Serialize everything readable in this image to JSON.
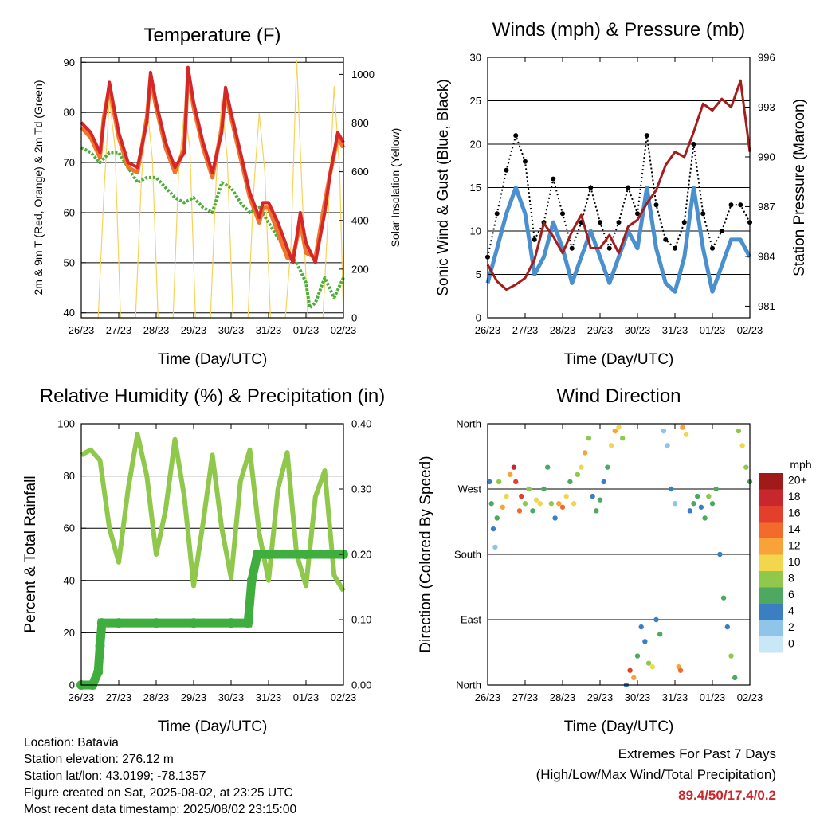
{
  "metadata": {
    "location": "Location: Batavia",
    "elevation": "Station elevation: 276.12 m",
    "latlon": "Station lat/lon: 43.0199; -78.1357",
    "created": "Figure created on Sat, 2025-08-02, at 23:25 UTC",
    "recent": "Most recent data timestamp: 2025/08/02 23:15:00"
  },
  "extremes": {
    "title": "Extremes For Past 7 Days",
    "subtitle": "(High/Low/Max Wind/Total Precipitation)",
    "values": "89.4/50/17.4/0.2",
    "color": "#c8282d"
  },
  "colors": {
    "temp_9m": "#d62728",
    "temp_2m": "#f0742a",
    "dewpoint": "#4caf3a",
    "insolation": "#f7d25a",
    "gust": "#000000",
    "wind": "#4a90cf",
    "pressure": "#a51c1c",
    "rh": "#8fc84b",
    "precip": "#3fae3f"
  },
  "chart_data": [
    {
      "id": "temperature",
      "type": "line",
      "title": "Temperature (F)",
      "xlabel": "Time (Day/UTC)",
      "ylabel": "2m & 9m T (Red, Orange) & 2m Td (Green)",
      "y2label": "Solar Insolation (Yellow)",
      "x_ticks": [
        "26/23",
        "27/23",
        "28/23",
        "29/23",
        "30/23",
        "31/23",
        "01/23",
        "02/23"
      ],
      "xlim": [
        0,
        7
      ],
      "ylim": [
        39,
        91
      ],
      "y_ticks": [
        40,
        50,
        60,
        70,
        80,
        90
      ],
      "y2lim": [
        0,
        1070
      ],
      "y2_ticks": [
        0,
        200,
        400,
        600,
        800,
        1000
      ],
      "grid": true,
      "series": [
        {
          "name": "9m T",
          "axis": "left",
          "x": [
            0,
            0.25,
            0.5,
            0.6,
            0.75,
            0.85,
            1.0,
            1.25,
            1.5,
            1.75,
            1.85,
            2.0,
            2.25,
            2.5,
            2.75,
            2.85,
            3.0,
            3.25,
            3.5,
            3.75,
            3.85,
            4.0,
            4.25,
            4.5,
            4.75,
            4.85,
            5.0,
            5.25,
            5.5,
            5.65,
            5.85,
            6.0,
            6.25,
            6.5,
            6.65,
            6.85,
            7.0
          ],
          "values": [
            78,
            76,
            72,
            78,
            86,
            82,
            76,
            70,
            69,
            78,
            88,
            82,
            74,
            69,
            72,
            89,
            82,
            74,
            68,
            76,
            85,
            80,
            72,
            64,
            59,
            62,
            62,
            58,
            53,
            50,
            60,
            54,
            50,
            60,
            68,
            76,
            74
          ]
        },
        {
          "name": "2m T",
          "axis": "left",
          "x": [
            0,
            0.25,
            0.5,
            0.6,
            0.75,
            0.85,
            1.0,
            1.25,
            1.5,
            1.75,
            1.85,
            2.0,
            2.25,
            2.5,
            2.75,
            2.85,
            3.0,
            3.25,
            3.5,
            3.75,
            3.85,
            4.0,
            4.25,
            4.5,
            4.75,
            4.85,
            5.0,
            5.25,
            5.5,
            5.65,
            5.85,
            6.0,
            6.25,
            6.5,
            6.65,
            6.85,
            7.0
          ],
          "values": [
            77,
            75,
            71,
            79,
            85,
            81,
            75,
            69,
            68,
            79,
            87,
            81,
            73,
            68,
            73,
            88,
            81,
            73,
            67,
            77,
            84,
            79,
            71,
            63,
            58,
            61,
            61,
            56,
            51,
            51,
            58,
            52,
            51,
            62,
            68,
            75,
            73
          ]
        },
        {
          "name": "2m Td",
          "axis": "left",
          "x": [
            0,
            0.25,
            0.5,
            0.75,
            1.0,
            1.25,
            1.5,
            1.75,
            2.0,
            2.25,
            2.5,
            2.75,
            3.0,
            3.25,
            3.5,
            3.75,
            4.0,
            4.25,
            4.5,
            4.75,
            5.0,
            5.25,
            5.5,
            5.75,
            6.0,
            6.1,
            6.25,
            6.5,
            6.75,
            7.0
          ],
          "values": [
            73,
            72,
            70,
            72,
            72,
            69,
            66,
            67,
            67,
            65,
            63,
            62,
            63,
            61,
            60,
            66,
            65,
            62,
            60,
            61,
            58,
            55,
            52,
            50,
            46,
            41,
            42,
            47,
            43,
            47
          ]
        },
        {
          "name": "Solar Insolation",
          "axis": "right",
          "x": [
            0,
            0.3,
            0.45,
            0.6,
            0.75,
            0.9,
            1.05,
            1.3,
            1.45,
            1.6,
            1.75,
            1.9,
            2.05,
            2.3,
            2.45,
            2.6,
            2.75,
            2.9,
            3.05,
            3.3,
            3.45,
            3.6,
            3.75,
            3.9,
            4.05,
            4.3,
            4.45,
            4.6,
            4.75,
            4.9,
            5.05,
            5.3,
            5.45,
            5.6,
            5.75,
            5.9,
            6.05,
            6.3,
            6.45,
            6.6,
            6.75,
            6.9,
            7.0
          ],
          "values": [
            0,
            0,
            0,
            500,
            900,
            700,
            0,
            0,
            0,
            550,
            880,
            650,
            0,
            0,
            0,
            600,
            850,
            700,
            0,
            0,
            0,
            560,
            900,
            650,
            0,
            0,
            0,
            520,
            840,
            600,
            0,
            0,
            0,
            300,
            1060,
            500,
            0,
            0,
            0,
            450,
            950,
            600,
            0
          ]
        }
      ]
    },
    {
      "id": "winds",
      "type": "line",
      "title": "Winds (mph) & Pressure (mb)",
      "xlabel": "Time (Day/UTC)",
      "ylabel": "Sonic Wind & Gust (Blue, Black)",
      "y2label": "Station Pressure (Maroon)",
      "x_ticks": [
        "26/23",
        "27/23",
        "28/23",
        "29/23",
        "30/23",
        "31/23",
        "01/23",
        "02/23"
      ],
      "xlim": [
        0,
        7
      ],
      "ylim": [
        0,
        30
      ],
      "y_ticks": [
        0,
        5,
        10,
        15,
        20,
        25,
        30
      ],
      "y2lim": [
        980.3,
        996
      ],
      "y2_ticks": [
        981,
        984,
        987,
        990,
        993,
        996
      ],
      "grid": true,
      "series": [
        {
          "name": "Gust",
          "axis": "left",
          "x": [
            0,
            0.25,
            0.5,
            0.75,
            1.0,
            1.25,
            1.5,
            1.75,
            2.0,
            2.25,
            2.5,
            2.75,
            3.0,
            3.25,
            3.5,
            3.75,
            4.0,
            4.25,
            4.5,
            4.75,
            5.0,
            5.25,
            5.5,
            5.75,
            6.0,
            6.25,
            6.5,
            6.75,
            7.0
          ],
          "values": [
            7,
            12,
            17,
            21,
            18,
            9,
            11,
            16,
            12,
            8,
            11,
            15,
            11,
            8,
            11,
            15,
            12,
            21,
            13,
            9,
            8,
            11,
            20,
            12,
            8,
            10,
            13,
            13,
            11
          ]
        },
        {
          "name": "Sonic Wind",
          "axis": "left",
          "x": [
            0,
            0.25,
            0.5,
            0.75,
            1.0,
            1.25,
            1.5,
            1.75,
            2.0,
            2.25,
            2.5,
            2.75,
            3.0,
            3.25,
            3.5,
            3.75,
            4.0,
            4.25,
            4.5,
            4.75,
            5.0,
            5.25,
            5.5,
            5.75,
            6.0,
            6.25,
            6.5,
            6.75,
            7.0
          ],
          "values": [
            4,
            8,
            12,
            15,
            12,
            5,
            7,
            11,
            8,
            4,
            7,
            10,
            7,
            4,
            7,
            10,
            8,
            15,
            8,
            4,
            3,
            7,
            15,
            8,
            3,
            6,
            9,
            9,
            7
          ]
        },
        {
          "name": "Station Pressure",
          "axis": "right",
          "x": [
            0,
            0.25,
            0.5,
            0.75,
            1.0,
            1.25,
            1.5,
            1.75,
            2.0,
            2.25,
            2.5,
            2.75,
            3.0,
            3.25,
            3.5,
            3.75,
            4.0,
            4.25,
            4.5,
            4.75,
            5.0,
            5.25,
            5.5,
            5.75,
            6.0,
            6.25,
            6.5,
            6.75,
            7.0
          ],
          "values": [
            983.5,
            982.5,
            982.0,
            982.3,
            982.7,
            983.8,
            986.0,
            985.2,
            984.2,
            985.5,
            986.5,
            984.5,
            984.5,
            985.3,
            984.2,
            985.8,
            986.2,
            987.2,
            988.0,
            989.5,
            990.3,
            990.0,
            991.5,
            993.2,
            992.8,
            993.5,
            993.0,
            994.6,
            990.3
          ]
        }
      ]
    },
    {
      "id": "humidity",
      "type": "line",
      "title": "Relative Humidity (%) & Precipitation (in)",
      "xlabel": "Time (Day/UTC)",
      "ylabel": "Percent & Total Rainfall",
      "x_ticks": [
        "26/23",
        "27/23",
        "28/23",
        "29/23",
        "30/23",
        "31/23",
        "01/23",
        "02/23"
      ],
      "xlim": [
        0,
        7
      ],
      "ylim": [
        0,
        100
      ],
      "y_ticks": [
        0,
        20,
        40,
        60,
        80,
        100
      ],
      "y2lim": [
        0,
        0.4
      ],
      "y2_ticks": [
        "0.00",
        "0.10",
        "0.20",
        "0.30",
        "0.40"
      ],
      "grid": true,
      "series": [
        {
          "name": "Relative Humidity",
          "axis": "left",
          "x": [
            0,
            0.25,
            0.5,
            0.75,
            1.0,
            1.25,
            1.5,
            1.75,
            2.0,
            2.25,
            2.5,
            2.75,
            3.0,
            3.25,
            3.5,
            3.75,
            4.0,
            4.25,
            4.5,
            4.75,
            5.0,
            5.25,
            5.5,
            5.75,
            6.0,
            6.25,
            6.5,
            6.75,
            7.0
          ],
          "values": [
            88,
            90,
            86,
            60,
            47,
            75,
            96,
            80,
            50,
            67,
            94,
            72,
            38,
            62,
            88,
            60,
            41,
            78,
            90,
            58,
            40,
            75,
            89,
            50,
            38,
            72,
            82,
            42,
            36
          ]
        },
        {
          "name": "Total Precipitation",
          "axis": "right",
          "x": [
            0,
            0.3,
            0.45,
            0.5,
            0.55,
            1.0,
            2.0,
            3.0,
            4.0,
            4.45,
            4.55,
            4.7,
            5.0,
            6.0,
            7.0
          ],
          "values": [
            0,
            0,
            0.02,
            0.06,
            0.095,
            0.095,
            0.095,
            0.095,
            0.095,
            0.095,
            0.16,
            0.2,
            0.2,
            0.2,
            0.2
          ]
        }
      ]
    },
    {
      "id": "wind_direction",
      "type": "scatter",
      "title": "Wind Direction",
      "xlabel": "Time (Day/UTC)",
      "ylabel": "Direction (Colored By Speed)",
      "x_ticks": [
        "26/23",
        "27/23",
        "28/23",
        "29/23",
        "30/23",
        "31/23",
        "01/23",
        "02/23"
      ],
      "xlim": [
        0,
        7
      ],
      "y_ticks": [
        "North",
        "East",
        "South",
        "West",
        "North"
      ],
      "ylim": [
        0,
        360
      ],
      "colorbar": {
        "title": "mph",
        "labels": [
          "20+",
          "18",
          "16",
          "14",
          "12",
          "10",
          "8",
          "6",
          "4",
          "2",
          "0"
        ],
        "colors": [
          "#a01a1a",
          "#c8282d",
          "#e2402c",
          "#f26a2c",
          "#f7a33a",
          "#f2d64c",
          "#8fc84b",
          "#4fa860",
          "#3a7fc2",
          "#8ec5e8",
          "#c8e8f7"
        ]
      },
      "points": [
        [
          0.05,
          280,
          4
        ],
        [
          0.1,
          250,
          5
        ],
        [
          0.15,
          215,
          3
        ],
        [
          0.2,
          190,
          2
        ],
        [
          0.25,
          230,
          6
        ],
        [
          0.3,
          280,
          7
        ],
        [
          0.4,
          245,
          12
        ],
        [
          0.5,
          260,
          10
        ],
        [
          0.6,
          290,
          12
        ],
        [
          0.7,
          300,
          18
        ],
        [
          0.75,
          280,
          16
        ],
        [
          0.85,
          240,
          14
        ],
        [
          0.9,
          260,
          16
        ],
        [
          1.0,
          250,
          7
        ],
        [
          1.1,
          270,
          8
        ],
        [
          1.2,
          240,
          6
        ],
        [
          1.3,
          255,
          9
        ],
        [
          1.4,
          250,
          10
        ],
        [
          1.5,
          270,
          6
        ],
        [
          1.6,
          300,
          5
        ],
        [
          1.7,
          250,
          8
        ],
        [
          1.8,
          230,
          4
        ],
        [
          1.9,
          250,
          12
        ],
        [
          2.0,
          245,
          13
        ],
        [
          2.1,
          260,
          10
        ],
        [
          2.2,
          280,
          6
        ],
        [
          2.3,
          250,
          9
        ],
        [
          2.4,
          290,
          8
        ],
        [
          2.5,
          300,
          10
        ],
        [
          2.6,
          320,
          12
        ],
        [
          2.7,
          340,
          8
        ],
        [
          2.8,
          260,
          4
        ],
        [
          2.9,
          240,
          6
        ],
        [
          3.0,
          255,
          5
        ],
        [
          3.1,
          280,
          3
        ],
        [
          3.2,
          300,
          6
        ],
        [
          3.3,
          330,
          10
        ],
        [
          3.4,
          350,
          12
        ],
        [
          3.5,
          355,
          9
        ],
        [
          3.6,
          340,
          8
        ],
        [
          3.7,
          0,
          4
        ],
        [
          3.8,
          20,
          16
        ],
        [
          3.9,
          10,
          12
        ],
        [
          4.0,
          40,
          6
        ],
        [
          4.1,
          80,
          4
        ],
        [
          4.2,
          60,
          3
        ],
        [
          4.3,
          30,
          8
        ],
        [
          4.4,
          25,
          10
        ],
        [
          4.5,
          90,
          4
        ],
        [
          4.6,
          70,
          5
        ],
        [
          4.7,
          350,
          2
        ],
        [
          4.8,
          330,
          1
        ],
        [
          4.9,
          270,
          3
        ],
        [
          5.0,
          250,
          1
        ],
        [
          5.1,
          25,
          12
        ],
        [
          5.15,
          20,
          14
        ],
        [
          5.2,
          355,
          12
        ],
        [
          5.3,
          345,
          10
        ],
        [
          5.4,
          240,
          4
        ],
        [
          5.5,
          250,
          5
        ],
        [
          5.6,
          260,
          6
        ],
        [
          5.7,
          245,
          4
        ],
        [
          5.8,
          230,
          6
        ],
        [
          5.9,
          260,
          8
        ],
        [
          6.0,
          250,
          5
        ],
        [
          6.1,
          270,
          6
        ],
        [
          6.2,
          180,
          3
        ],
        [
          6.3,
          120,
          5
        ],
        [
          6.4,
          80,
          4
        ],
        [
          6.5,
          40,
          7
        ],
        [
          6.6,
          10,
          6
        ],
        [
          6.7,
          350,
          8
        ],
        [
          6.8,
          330,
          10
        ],
        [
          6.9,
          300,
          7
        ],
        [
          7.0,
          280,
          6
        ]
      ]
    }
  ]
}
